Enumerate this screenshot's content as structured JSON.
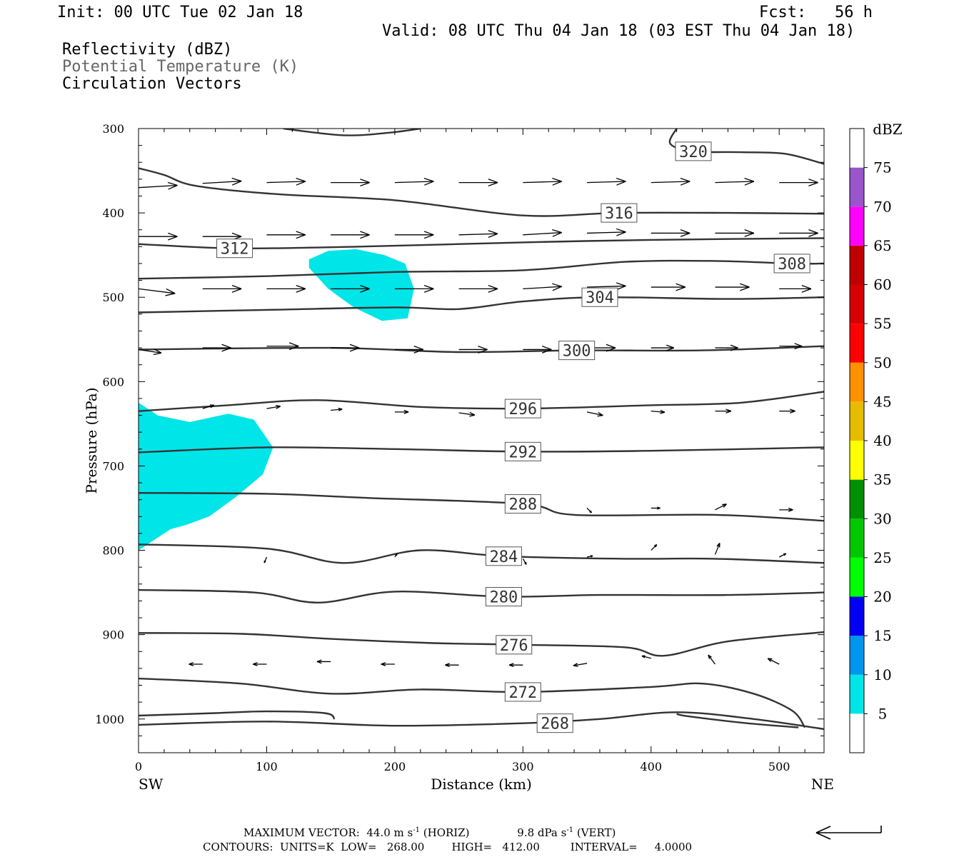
{
  "header": {
    "init": "Init: 00 UTC Tue 02 Jan 18",
    "fcst": "Fcst:   56 h",
    "valid": "Valid: 08 UTC Thu 04 Jan 18 (03 EST Thu 04 Jan 18)",
    "fields": [
      "Reflectivity (dBZ)",
      "Potential Temperature (K)",
      "Circulation Vectors"
    ]
  },
  "colors": {
    "contour": "#333333",
    "field2": "#666666",
    "refl": "#00e5e8"
  },
  "chart_data": {
    "type": "cross-section",
    "xlabel": "Distance (km)",
    "ylabel": "Pressure (hPa)",
    "x_left_label": "SW",
    "x_right_label": "NE",
    "xlim": [
      0,
      535
    ],
    "ylim": [
      1040,
      300
    ],
    "xticks": [
      0,
      100,
      200,
      300,
      400,
      500
    ],
    "yticks": [
      300,
      400,
      500,
      600,
      700,
      800,
      900,
      1000
    ],
    "colorbar": {
      "unit": "dBZ",
      "levels": [
        5,
        10,
        15,
        20,
        25,
        30,
        35,
        40,
        45,
        50,
        55,
        60,
        65,
        70,
        75
      ],
      "colors": [
        "#ffffff",
        "#00e5e8",
        "#0096f0",
        "#0000f5",
        "#00ff00",
        "#00c800",
        "#009000",
        "#ffff00",
        "#e6bc00",
        "#ff9000",
        "#ff0000",
        "#d60000",
        "#c00000",
        "#ff00ff",
        "#9955c9",
        "#ffffff"
      ]
    },
    "reflectivity_areas": [
      {
        "dbz": 5,
        "points": [
          [
            0,
            625
          ],
          [
            15,
            640
          ],
          [
            40,
            648
          ],
          [
            70,
            638
          ],
          [
            90,
            645
          ],
          [
            105,
            678
          ],
          [
            97,
            710
          ],
          [
            75,
            738
          ],
          [
            55,
            760
          ],
          [
            37,
            770
          ],
          [
            25,
            775
          ],
          [
            0,
            800
          ]
        ]
      },
      {
        "dbz": 5,
        "points": [
          [
            133,
            455
          ],
          [
            148,
            445
          ],
          [
            170,
            443
          ],
          [
            192,
            450
          ],
          [
            208,
            460
          ],
          [
            215,
            490
          ],
          [
            210,
            525
          ],
          [
            190,
            528
          ],
          [
            168,
            512
          ],
          [
            148,
            490
          ],
          [
            133,
            465
          ]
        ]
      }
    ],
    "theta_contours": [
      {
        "value": 268,
        "label_x": 325,
        "label_p": 1005,
        "points": [
          [
            0,
            1007
          ],
          [
            100,
            1003
          ],
          [
            200,
            1008
          ],
          [
            300,
            1005
          ],
          [
            360,
            1000
          ],
          [
            420,
            992
          ],
          [
            480,
            1000
          ],
          [
            535,
            1012
          ]
        ]
      },
      {
        "value": 272,
        "label_x": 300,
        "label_p": 968,
        "points": [
          [
            0,
            952
          ],
          [
            80,
            958
          ],
          [
            150,
            970
          ],
          [
            220,
            965
          ],
          [
            300,
            968
          ],
          [
            400,
            962
          ],
          [
            440,
            958
          ],
          [
            480,
            970
          ],
          [
            510,
            990
          ],
          [
            520,
            1010
          ]
        ]
      },
      {
        "value": 276,
        "label_x": 293,
        "label_p": 912,
        "points": [
          [
            0,
            898
          ],
          [
            80,
            899
          ],
          [
            150,
            905
          ],
          [
            230,
            910
          ],
          [
            300,
            912
          ],
          [
            380,
            915
          ],
          [
            410,
            925
          ],
          [
            460,
            908
          ],
          [
            535,
            897
          ]
        ]
      },
      {
        "value": 280,
        "label_x": 285,
        "label_p": 855,
        "points": [
          [
            0,
            847
          ],
          [
            90,
            850
          ],
          [
            140,
            862
          ],
          [
            200,
            849
          ],
          [
            285,
            855
          ],
          [
            360,
            853
          ],
          [
            460,
            853
          ],
          [
            535,
            850
          ]
        ]
      },
      {
        "value": 284,
        "label_x": 285,
        "label_p": 807,
        "points": [
          [
            0,
            793
          ],
          [
            100,
            798
          ],
          [
            160,
            815
          ],
          [
            220,
            800
          ],
          [
            285,
            807
          ],
          [
            380,
            810
          ],
          [
            450,
            810
          ],
          [
            535,
            815
          ]
        ]
      },
      {
        "value": 288,
        "label_x": 300,
        "label_p": 745,
        "points": [
          [
            0,
            732
          ],
          [
            100,
            733
          ],
          [
            180,
            738
          ],
          [
            300,
            745
          ],
          [
            340,
            758
          ],
          [
            450,
            758
          ],
          [
            535,
            765
          ]
        ]
      },
      {
        "value": 292,
        "label_x": 300,
        "label_p": 683,
        "points": [
          [
            0,
            684
          ],
          [
            100,
            678
          ],
          [
            200,
            680
          ],
          [
            300,
            683
          ],
          [
            400,
            682
          ],
          [
            535,
            678
          ]
        ]
      },
      {
        "value": 296,
        "label_x": 300,
        "label_p": 632,
        "points": [
          [
            0,
            635
          ],
          [
            70,
            628
          ],
          [
            140,
            622
          ],
          [
            220,
            630
          ],
          [
            300,
            632
          ],
          [
            400,
            628
          ],
          [
            470,
            625
          ],
          [
            535,
            612
          ]
        ]
      },
      {
        "value": 300,
        "label_x": 342,
        "label_p": 563,
        "points": [
          [
            0,
            562
          ],
          [
            150,
            560
          ],
          [
            250,
            565
          ],
          [
            342,
            563
          ],
          [
            440,
            563
          ],
          [
            535,
            558
          ]
        ]
      },
      {
        "value": 304,
        "label_x": 360,
        "label_p": 500,
        "points": [
          [
            0,
            518
          ],
          [
            100,
            515
          ],
          [
            200,
            512
          ],
          [
            250,
            514
          ],
          [
            300,
            505
          ],
          [
            360,
            500
          ],
          [
            460,
            502
          ],
          [
            535,
            500
          ]
        ]
      },
      {
        "value": 308,
        "label_x": 510,
        "label_p": 460,
        "points": [
          [
            0,
            478
          ],
          [
            100,
            475
          ],
          [
            200,
            470
          ],
          [
            300,
            468
          ],
          [
            380,
            458
          ],
          [
            450,
            457
          ],
          [
            510,
            460
          ],
          [
            535,
            460
          ]
        ]
      },
      {
        "value": 312,
        "label_x": 75,
        "label_p": 442,
        "points": [
          [
            0,
            437
          ],
          [
            75,
            442
          ],
          [
            170,
            440
          ],
          [
            300,
            435
          ],
          [
            400,
            432
          ],
          [
            535,
            430
          ]
        ]
      },
      {
        "value": 316,
        "label_x": 375,
        "label_p": 400,
        "points": [
          [
            0,
            347
          ],
          [
            20,
            355
          ],
          [
            45,
            368
          ],
          [
            110,
            378
          ],
          [
            200,
            385
          ],
          [
            300,
            403
          ],
          [
            375,
            400
          ],
          [
            460,
            400
          ],
          [
            535,
            401
          ]
        ]
      },
      {
        "value": 320,
        "label_x": 433,
        "label_p": 327,
        "points": [
          [
            113,
            300
          ],
          [
            160,
            308
          ],
          [
            195,
            305
          ],
          [
            220,
            300
          ]
        ]
      }
    ],
    "extra_segments": [
      [
        [
          420,
          300
        ],
        [
          415,
          318
        ],
        [
          433,
          327
        ],
        [
          470,
          328
        ],
        [
          505,
          330
        ],
        [
          535,
          342
        ]
      ],
      [
        [
          0,
          996
        ],
        [
          60,
          993
        ],
        [
          100,
          991
        ],
        [
          145,
          993
        ],
        [
          153,
          1000
        ]
      ],
      [
        [
          420,
          994
        ],
        [
          430,
          997
        ],
        [
          475,
          1005
        ],
        [
          515,
          1010
        ]
      ]
    ],
    "circulation_vectors": [
      {
        "x": 0,
        "y": 370,
        "dx": 34,
        "dy": -2
      },
      {
        "x": 50,
        "y": 365,
        "dx": 34,
        "dy": -2
      },
      {
        "x": 100,
        "y": 364,
        "dx": 34,
        "dy": -1
      },
      {
        "x": 150,
        "y": 364,
        "dx": 34,
        "dy": 0
      },
      {
        "x": 200,
        "y": 364,
        "dx": 34,
        "dy": -1
      },
      {
        "x": 250,
        "y": 364,
        "dx": 34,
        "dy": 0
      },
      {
        "x": 300,
        "y": 364,
        "dx": 34,
        "dy": -1
      },
      {
        "x": 350,
        "y": 364,
        "dx": 34,
        "dy": -1
      },
      {
        "x": 400,
        "y": 364,
        "dx": 34,
        "dy": -1
      },
      {
        "x": 450,
        "y": 364,
        "dx": 34,
        "dy": -1
      },
      {
        "x": 500,
        "y": 364,
        "dx": 34,
        "dy": 0
      },
      {
        "x": 0,
        "y": 428,
        "dx": 34,
        "dy": 0
      },
      {
        "x": 50,
        "y": 428,
        "dx": 34,
        "dy": 0
      },
      {
        "x": 100,
        "y": 426,
        "dx": 34,
        "dy": 0
      },
      {
        "x": 150,
        "y": 426,
        "dx": 34,
        "dy": 0
      },
      {
        "x": 200,
        "y": 426,
        "dx": 34,
        "dy": 0
      },
      {
        "x": 250,
        "y": 426,
        "dx": 34,
        "dy": -1
      },
      {
        "x": 300,
        "y": 426,
        "dx": 34,
        "dy": -2
      },
      {
        "x": 350,
        "y": 424,
        "dx": 34,
        "dy": -1
      },
      {
        "x": 400,
        "y": 424,
        "dx": 34,
        "dy": 0
      },
      {
        "x": 450,
        "y": 424,
        "dx": 34,
        "dy": 0
      },
      {
        "x": 500,
        "y": 424,
        "dx": 34,
        "dy": 0
      },
      {
        "x": 0,
        "y": 490,
        "dx": 32,
        "dy": 4
      },
      {
        "x": 50,
        "y": 490,
        "dx": 34,
        "dy": 0
      },
      {
        "x": 100,
        "y": 490,
        "dx": 34,
        "dy": 0
      },
      {
        "x": 150,
        "y": 490,
        "dx": 34,
        "dy": 0
      },
      {
        "x": 200,
        "y": 490,
        "dx": 34,
        "dy": 0
      },
      {
        "x": 250,
        "y": 490,
        "dx": 34,
        "dy": 0
      },
      {
        "x": 300,
        "y": 490,
        "dx": 34,
        "dy": -2
      },
      {
        "x": 350,
        "y": 488,
        "dx": 34,
        "dy": -1
      },
      {
        "x": 400,
        "y": 488,
        "dx": 30,
        "dy": 0
      },
      {
        "x": 450,
        "y": 488,
        "dx": 30,
        "dy": 0
      },
      {
        "x": 500,
        "y": 490,
        "dx": 28,
        "dy": 0
      },
      {
        "x": 0,
        "y": 562,
        "dx": 20,
        "dy": 3
      },
      {
        "x": 50,
        "y": 560,
        "dx": 25,
        "dy": 0
      },
      {
        "x": 100,
        "y": 558,
        "dx": 28,
        "dy": 0
      },
      {
        "x": 150,
        "y": 560,
        "dx": 25,
        "dy": 0
      },
      {
        "x": 200,
        "y": 562,
        "dx": 25,
        "dy": 0
      },
      {
        "x": 250,
        "y": 562,
        "dx": 25,
        "dy": 0
      },
      {
        "x": 300,
        "y": 562,
        "dx": 25,
        "dy": 0
      },
      {
        "x": 350,
        "y": 560,
        "dx": 25,
        "dy": 0
      },
      {
        "x": 400,
        "y": 560,
        "dx": 20,
        "dy": 0
      },
      {
        "x": 450,
        "y": 560,
        "dx": 20,
        "dy": 0
      },
      {
        "x": 500,
        "y": 558,
        "dx": 20,
        "dy": 0
      },
      {
        "x": 50,
        "y": 632,
        "dx": 10,
        "dy": -3
      },
      {
        "x": 100,
        "y": 632,
        "dx": 12,
        "dy": -2
      },
      {
        "x": 150,
        "y": 634,
        "dx": 10,
        "dy": -1
      },
      {
        "x": 200,
        "y": 636,
        "dx": 12,
        "dy": 0
      },
      {
        "x": 250,
        "y": 637,
        "dx": 14,
        "dy": 2
      },
      {
        "x": 300,
        "y": 637,
        "dx": 14,
        "dy": 4
      },
      {
        "x": 350,
        "y": 636,
        "dx": 14,
        "dy": 3
      },
      {
        "x": 400,
        "y": 635,
        "dx": 12,
        "dy": 1
      },
      {
        "x": 450,
        "y": 635,
        "dx": 14,
        "dy": 0
      },
      {
        "x": 500,
        "y": 635,
        "dx": 14,
        "dy": 0
      },
      {
        "x": 300,
        "y": 750,
        "dx": 3,
        "dy": 3
      },
      {
        "x": 350,
        "y": 750,
        "dx": 4,
        "dy": 4
      },
      {
        "x": 400,
        "y": 750,
        "dx": 8,
        "dy": 0
      },
      {
        "x": 450,
        "y": 752,
        "dx": 10,
        "dy": -5
      },
      {
        "x": 500,
        "y": 752,
        "dx": 12,
        "dy": 0
      },
      {
        "x": 100,
        "y": 808,
        "dx": -2,
        "dy": 5
      },
      {
        "x": 200,
        "y": 808,
        "dx": 2,
        "dy": -3
      },
      {
        "x": 300,
        "y": 810,
        "dx": 3,
        "dy": 5
      },
      {
        "x": 350,
        "y": 808,
        "dx": 5,
        "dy": -1
      },
      {
        "x": 400,
        "y": 800,
        "dx": 5,
        "dy": -5
      },
      {
        "x": 450,
        "y": 805,
        "dx": 4,
        "dy": -10
      },
      {
        "x": 500,
        "y": 808,
        "dx": 6,
        "dy": -3
      },
      {
        "x": 50,
        "y": 935,
        "dx": -12,
        "dy": 0
      },
      {
        "x": 100,
        "y": 935,
        "dx": -12,
        "dy": 0
      },
      {
        "x": 150,
        "y": 932,
        "dx": -12,
        "dy": 0
      },
      {
        "x": 200,
        "y": 935,
        "dx": -12,
        "dy": 0
      },
      {
        "x": 250,
        "y": 936,
        "dx": -12,
        "dy": 0
      },
      {
        "x": 300,
        "y": 936,
        "dx": -12,
        "dy": 0
      },
      {
        "x": 350,
        "y": 934,
        "dx": -12,
        "dy": 2
      },
      {
        "x": 400,
        "y": 928,
        "dx": -8,
        "dy": -2
      },
      {
        "x": 450,
        "y": 935,
        "dx": -6,
        "dy": -8
      },
      {
        "x": 500,
        "y": 935,
        "dx": -10,
        "dy": -5
      }
    ],
    "footer": {
      "max_vector_label": "MAXIMUM VECTOR:",
      "horiz_value": "44.0 m s",
      "horiz_unit": "(HORIZ)",
      "vert_value": "9.8 dPa s",
      "vert_unit": "(VERT)",
      "exponent": "-1",
      "contours": "CONTOURS:  UNITS=K  LOW=   268.00        HIGH=   412.00         INTERVAL=     4.0000"
    }
  }
}
